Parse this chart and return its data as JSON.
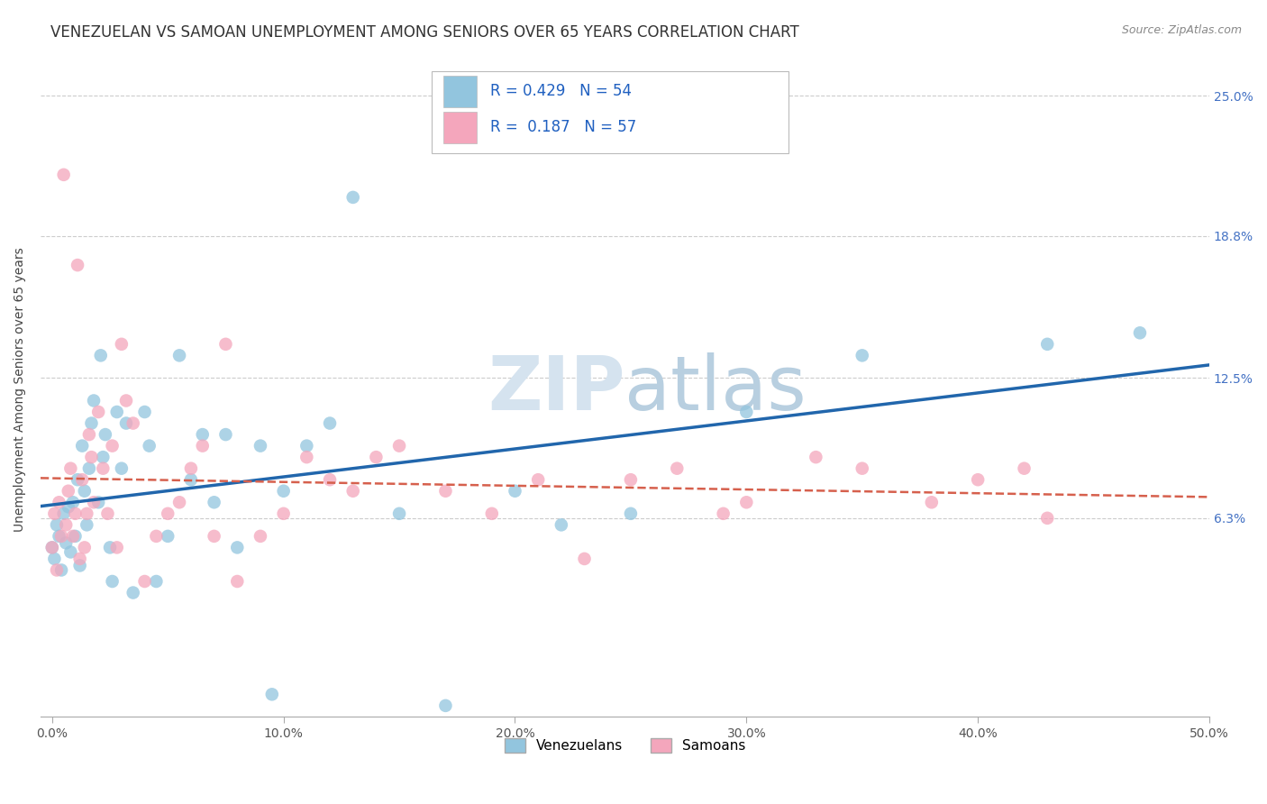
{
  "title": "VENEZUELAN VS SAMOAN UNEMPLOYMENT AMONG SENIORS OVER 65 YEARS CORRELATION CHART",
  "source": "Source: ZipAtlas.com",
  "xlabel_vals": [
    0.0,
    10.0,
    20.0,
    30.0,
    40.0,
    50.0
  ],
  "ylabel_vals": [
    6.3,
    12.5,
    18.8,
    25.0
  ],
  "ylabel_label": "Unemployment Among Seniors over 65 years",
  "xlim": [
    -0.5,
    50.0
  ],
  "ylim": [
    -2.5,
    26.5
  ],
  "venezuelan_color": "#92c5de",
  "samoan_color": "#f4a6bc",
  "venezuelan_line_color": "#2166ac",
  "samoan_line_color": "#d6604d",
  "legend_label1": "Venezuelans",
  "legend_label2": "Samoans",
  "R1": 0.429,
  "N1": 54,
  "R2": 0.187,
  "N2": 57,
  "venezuelan_x": [
    0.0,
    0.1,
    0.2,
    0.3,
    0.4,
    0.5,
    0.6,
    0.7,
    0.8,
    0.9,
    1.0,
    1.1,
    1.2,
    1.3,
    1.4,
    1.5,
    1.6,
    1.7,
    1.8,
    2.0,
    2.1,
    2.2,
    2.3,
    2.5,
    2.6,
    2.8,
    3.0,
    3.2,
    3.5,
    4.0,
    4.2,
    4.5,
    5.0,
    5.5,
    6.0,
    6.5,
    7.0,
    7.5,
    8.0,
    9.0,
    9.5,
    10.0,
    11.0,
    12.0,
    13.0,
    15.0,
    17.0,
    20.0,
    22.0,
    25.0,
    30.0,
    35.0,
    43.0,
    47.0
  ],
  "venezuelan_y": [
    5.0,
    4.5,
    6.0,
    5.5,
    4.0,
    6.5,
    5.2,
    6.8,
    4.8,
    7.0,
    5.5,
    8.0,
    4.2,
    9.5,
    7.5,
    6.0,
    8.5,
    10.5,
    11.5,
    7.0,
    13.5,
    9.0,
    10.0,
    5.0,
    3.5,
    11.0,
    8.5,
    10.5,
    3.0,
    11.0,
    9.5,
    3.5,
    5.5,
    13.5,
    8.0,
    10.0,
    7.0,
    10.0,
    5.0,
    9.5,
    -1.5,
    7.5,
    9.5,
    10.5,
    20.5,
    6.5,
    -2.0,
    7.5,
    6.0,
    6.5,
    11.0,
    13.5,
    14.0,
    14.5
  ],
  "samoan_x": [
    0.0,
    0.1,
    0.2,
    0.3,
    0.4,
    0.5,
    0.6,
    0.7,
    0.8,
    0.9,
    1.0,
    1.1,
    1.2,
    1.3,
    1.4,
    1.5,
    1.6,
    1.7,
    1.8,
    2.0,
    2.2,
    2.4,
    2.6,
    2.8,
    3.0,
    3.2,
    3.5,
    4.0,
    4.5,
    5.0,
    5.5,
    6.0,
    6.5,
    7.0,
    7.5,
    8.0,
    9.0,
    10.0,
    11.0,
    12.0,
    13.0,
    14.0,
    15.0,
    17.0,
    19.0,
    21.0,
    23.0,
    25.0,
    27.0,
    29.0,
    30.0,
    33.0,
    35.0,
    38.0,
    40.0,
    42.0,
    43.0
  ],
  "samoan_y": [
    5.0,
    6.5,
    4.0,
    7.0,
    5.5,
    21.5,
    6.0,
    7.5,
    8.5,
    5.5,
    6.5,
    17.5,
    4.5,
    8.0,
    5.0,
    6.5,
    10.0,
    9.0,
    7.0,
    11.0,
    8.5,
    6.5,
    9.5,
    5.0,
    14.0,
    11.5,
    10.5,
    3.5,
    5.5,
    6.5,
    7.0,
    8.5,
    9.5,
    5.5,
    14.0,
    3.5,
    5.5,
    6.5,
    9.0,
    8.0,
    7.5,
    9.0,
    9.5,
    7.5,
    6.5,
    8.0,
    4.5,
    8.0,
    8.5,
    6.5,
    7.0,
    9.0,
    8.5,
    7.0,
    8.0,
    8.5,
    6.3
  ],
  "background_color": "#ffffff",
  "grid_color": "#cccccc",
  "title_fontsize": 12,
  "axis_label_fontsize": 10,
  "tick_fontsize": 10,
  "watermark_color": "#d5e3ef",
  "watermark_fontsize": 60
}
